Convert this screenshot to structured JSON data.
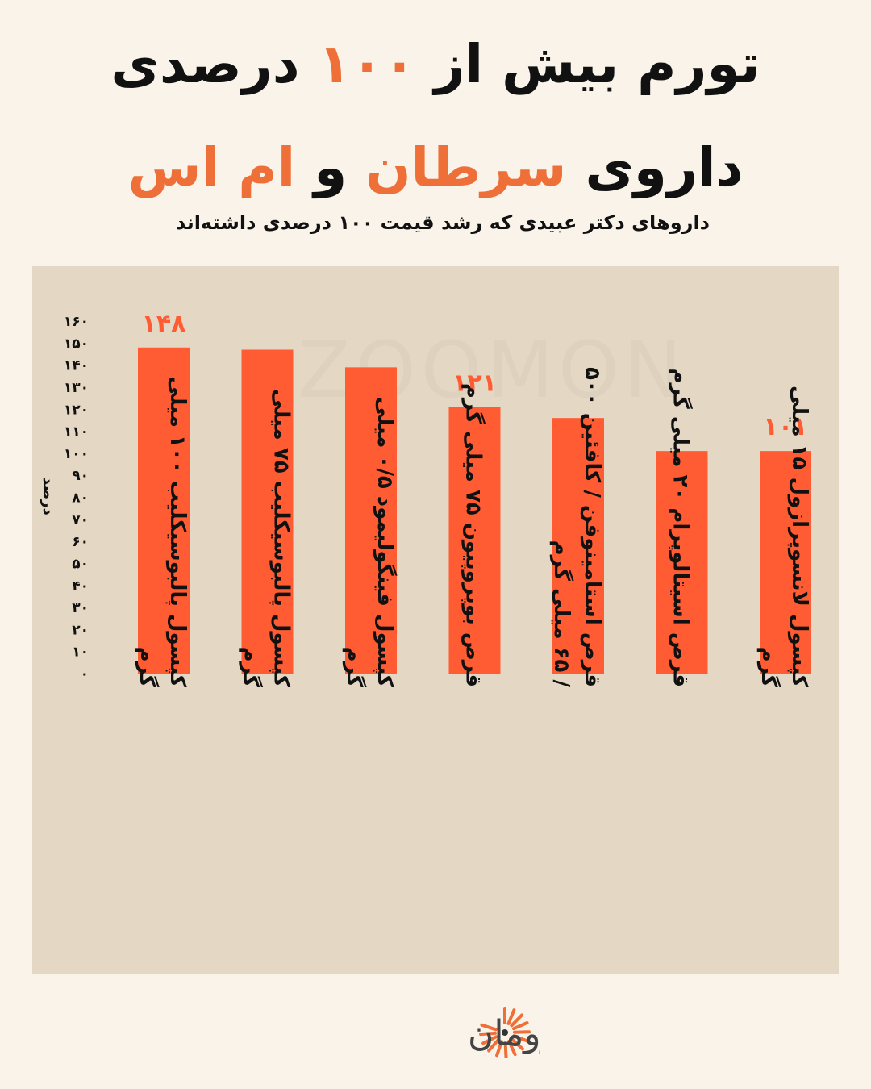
{
  "header": {
    "line1_part1": "تورم بیش از",
    "line1_highlight": "۱۰۰",
    "line1_part2": "درصدی",
    "line2_part1": "داروی",
    "line2_highlight1": "سرطان",
    "line2_conj": "و",
    "line2_highlight2": "ام اس",
    "subtitle": "داروهای دکتر عبیدی که رشد قیمت ۱۰۰ درصدی داشته‌اند"
  },
  "colors": {
    "background": "#f9f3ea",
    "panel": "#e4d8c5",
    "bar": "#ff5c33",
    "accent": "#ee7038",
    "text": "#111111"
  },
  "chart_data": {
    "type": "bar",
    "ylabel": "درصد",
    "ylim": [
      0,
      160
    ],
    "yticks": [
      "۰",
      "۱۰",
      "۲۰",
      "۳۰",
      "۴۰",
      "۵۰",
      "۶۰",
      "۷۰",
      "۸۰",
      "۹۰",
      "۱۰۰",
      "۱۱۰",
      "۱۲۰",
      "۱۳۰",
      "۱۴۰",
      "۱۵۰",
      "۱۶۰"
    ],
    "categories": [
      [
        "کپسول پالبوسیکلیب ۱۰۰ میلی",
        "گرم"
      ],
      [
        "کپسول پالبوسیکلیب ۷۵ میلی",
        "گرم"
      ],
      [
        "کپسول فینگولیمود ۰/۵ میلی",
        "گرم"
      ],
      [
        "قرص بوپروپیون ۷۵ میلی گرم"
      ],
      [
        "قرص استامینوفن / کافئین ۵۰۰",
        "/ ۶۵ میلی گرم"
      ],
      [
        "قرص اسیتالوپرام ۲۰ میلی گرم"
      ],
      [
        "کپسول لانسوپرازول ۱۵ میلی",
        "گرم"
      ]
    ],
    "values": [
      148,
      147,
      139,
      121,
      116,
      101,
      101
    ],
    "data_labels": [
      "۱۴۸",
      "",
      "",
      "۱۲۱",
      "",
      "",
      "۱۰۱"
    ],
    "grid": false,
    "legend": "none"
  },
  "watermark": "ZOOMON",
  "logo": {
    "name": "زومان",
    "icon": "sunburst-logo-icon"
  }
}
